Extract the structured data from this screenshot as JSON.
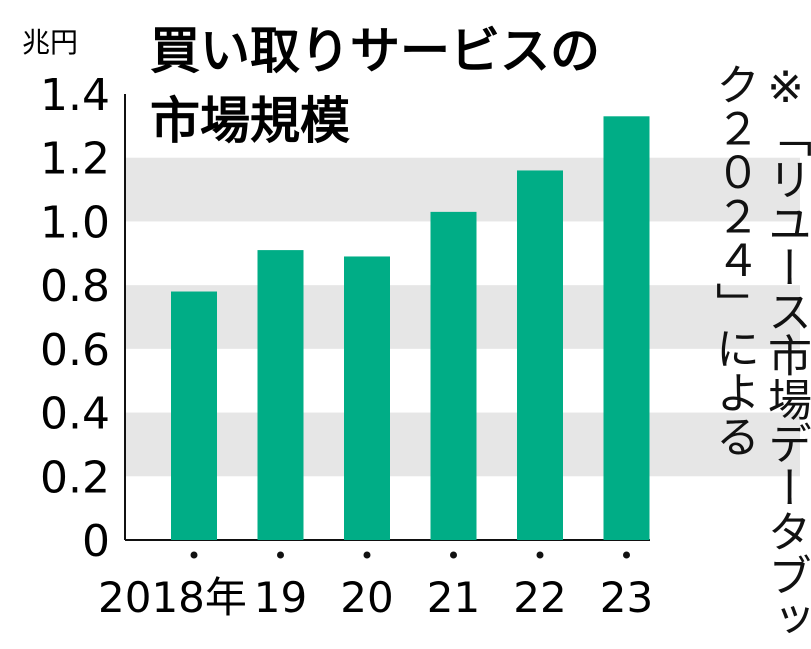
{
  "chart_data": {
    "type": "bar",
    "title": "買い取りサービスの市場規模",
    "title_lines": [
      "買い取りサービスの",
      "市場規模"
    ],
    "ylabel": "兆円",
    "categories": [
      "2018年",
      "19",
      "20",
      "21",
      "22",
      "23"
    ],
    "values": [
      0.78,
      0.91,
      0.89,
      1.03,
      1.16,
      1.33
    ],
    "ylim": [
      0,
      1.4
    ],
    "yticks": [
      "0",
      "0.2",
      "0.4",
      "0.6",
      "0.8",
      "1.0",
      "1.2",
      "1.4"
    ],
    "note": "※「リユース市場データブック２０２４」による",
    "grid": "alternating bands",
    "colors": {
      "bar": "#00ad86",
      "band": "#e6e6e6",
      "axis": "#111111"
    }
  }
}
